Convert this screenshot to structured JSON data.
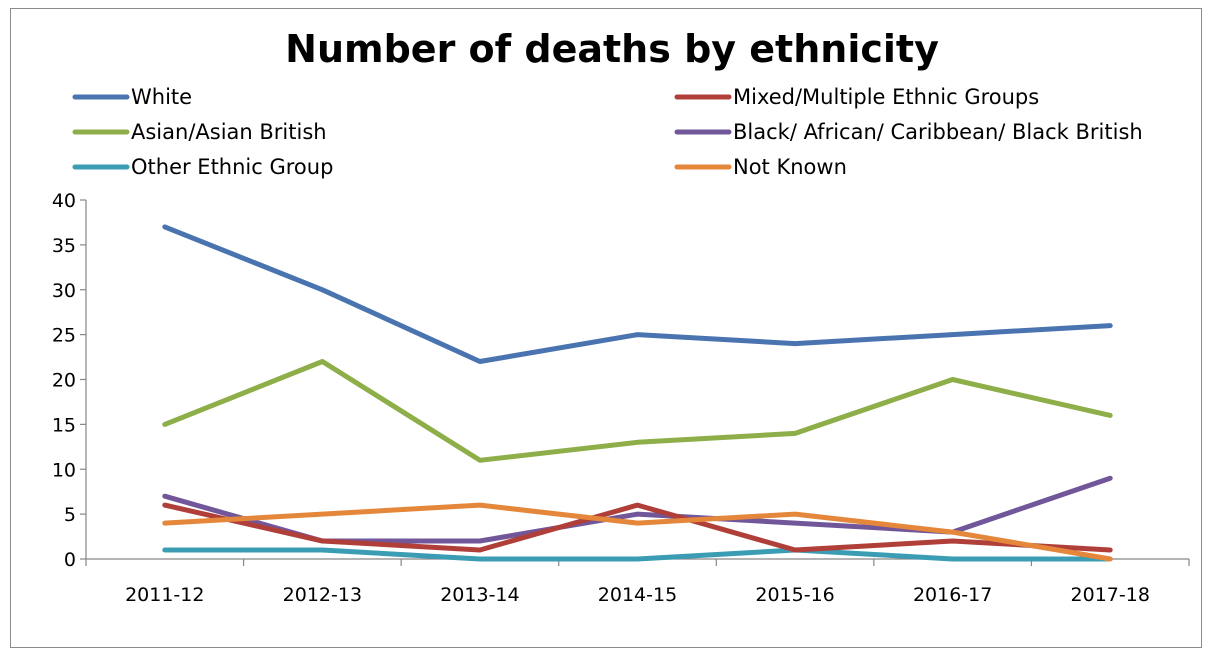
{
  "chart_data": {
    "type": "line",
    "title": "Number of deaths by ethnicity",
    "xlabel": "",
    "ylabel": "",
    "categories": [
      "2011-12",
      "2012-13",
      "2013-14",
      "2014-15",
      "2015-16",
      "2016-17",
      "2017-18"
    ],
    "ylim": [
      0,
      40
    ],
    "yticks": [
      "0",
      "5",
      "10",
      "15",
      "20",
      "25",
      "30",
      "35",
      "40"
    ],
    "grid": false,
    "legend_position": "top",
    "series": [
      {
        "name": "White",
        "color": "#4a74b0",
        "values": [
          37,
          30,
          22,
          25,
          24,
          25,
          26
        ]
      },
      {
        "name": "Mixed/Multiple Ethnic Groups",
        "color": "#b03f3a",
        "values": [
          6,
          2,
          1,
          6,
          1,
          2,
          1
        ]
      },
      {
        "name": "Asian/Asian British",
        "color": "#8dae48",
        "values": [
          15,
          22,
          11,
          13,
          14,
          20,
          16
        ]
      },
      {
        "name": "Black/ African/ Caribbean/ Black British",
        "color": "#71579a",
        "values": [
          7,
          2,
          2,
          5,
          4,
          3,
          9
        ]
      },
      {
        "name": "Other Ethnic Group",
        "color": "#3b9db3",
        "values": [
          1,
          1,
          0,
          0,
          1,
          0,
          0
        ]
      },
      {
        "name": "Not Known",
        "color": "#e4873a",
        "values": [
          4,
          5,
          6,
          4,
          5,
          3,
          0
        ]
      }
    ]
  }
}
